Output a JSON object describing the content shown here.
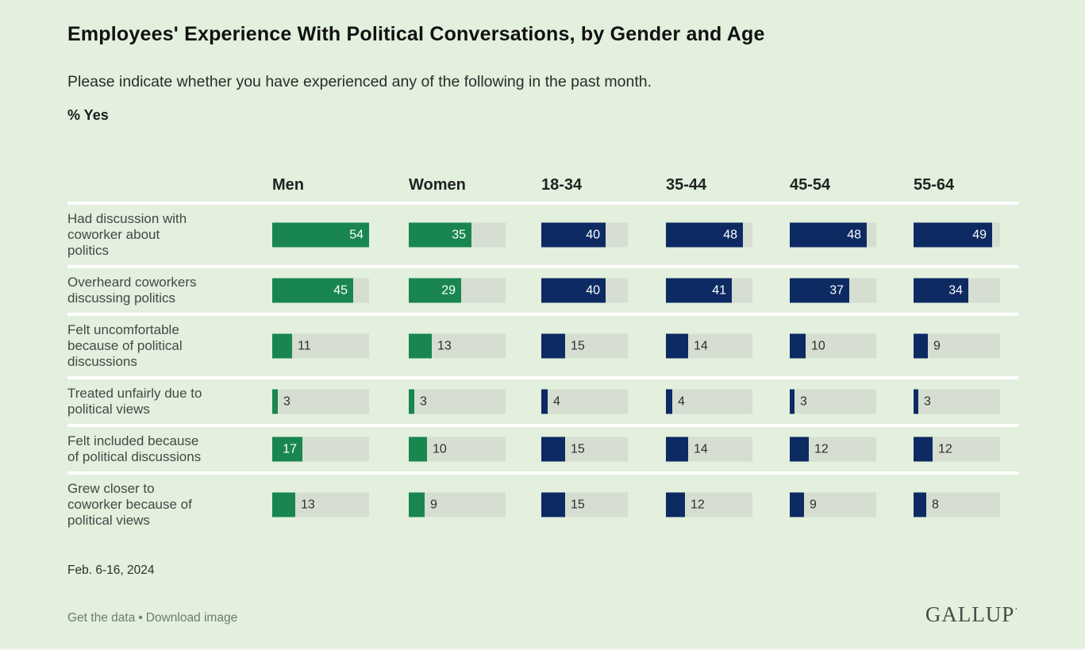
{
  "header": {
    "title": "Employees' Experience With Political Conversations, by Gender and Age",
    "subtitle": "Please indicate whether you have experienced any of the following in the past month.",
    "unit_label": "% Yes"
  },
  "chart_data": {
    "type": "bar",
    "orientation": "horizontal",
    "value_unit": "% Yes",
    "scale_max": 54,
    "grid": false,
    "legend_position": "none",
    "columns": [
      {
        "label": "Men",
        "group": "gender",
        "bar_color": "#19864f"
      },
      {
        "label": "Women",
        "group": "gender",
        "bar_color": "#19864f"
      },
      {
        "label": "18-34",
        "group": "age",
        "bar_color": "#0e2a63"
      },
      {
        "label": "35-44",
        "group": "age",
        "bar_color": "#0e2a63"
      },
      {
        "label": "45-54",
        "group": "age",
        "bar_color": "#0e2a63"
      },
      {
        "label": "55-64",
        "group": "age",
        "bar_color": "#0e2a63"
      }
    ],
    "rows": [
      {
        "label_lines": [
          "Had discussion with",
          "coworker about",
          "politics"
        ],
        "values": [
          54,
          35,
          40,
          48,
          48,
          49
        ]
      },
      {
        "label_lines": [
          "Overheard coworkers",
          "discussing politics"
        ],
        "values": [
          45,
          29,
          40,
          41,
          37,
          34
        ]
      },
      {
        "label_lines": [
          "Felt uncomfortable",
          "because of political",
          "discussions"
        ],
        "values": [
          11,
          13,
          15,
          14,
          10,
          9
        ]
      },
      {
        "label_lines": [
          "Treated unfairly due to",
          "political views"
        ],
        "values": [
          3,
          3,
          4,
          4,
          3,
          3
        ]
      },
      {
        "label_lines": [
          "Felt included because",
          "of political discussions"
        ],
        "values": [
          17,
          10,
          15,
          14,
          12,
          12
        ]
      },
      {
        "label_lines": [
          "Grew closer to",
          "coworker because of",
          "political views"
        ],
        "values": [
          13,
          9,
          15,
          12,
          9,
          8
        ]
      }
    ],
    "colors": {
      "gender_bar": "#19864f",
      "age_bar": "#0e2a63",
      "track": "#d6ded1",
      "background": "#e2f0dd",
      "separator": "#ffffff"
    }
  },
  "footer": {
    "date": "Feb. 6-16, 2024",
    "get_data_label": "Get the data",
    "separator": "•",
    "download_label": "Download image",
    "logo_text": "GALLUP",
    "logo_mark": "’"
  }
}
